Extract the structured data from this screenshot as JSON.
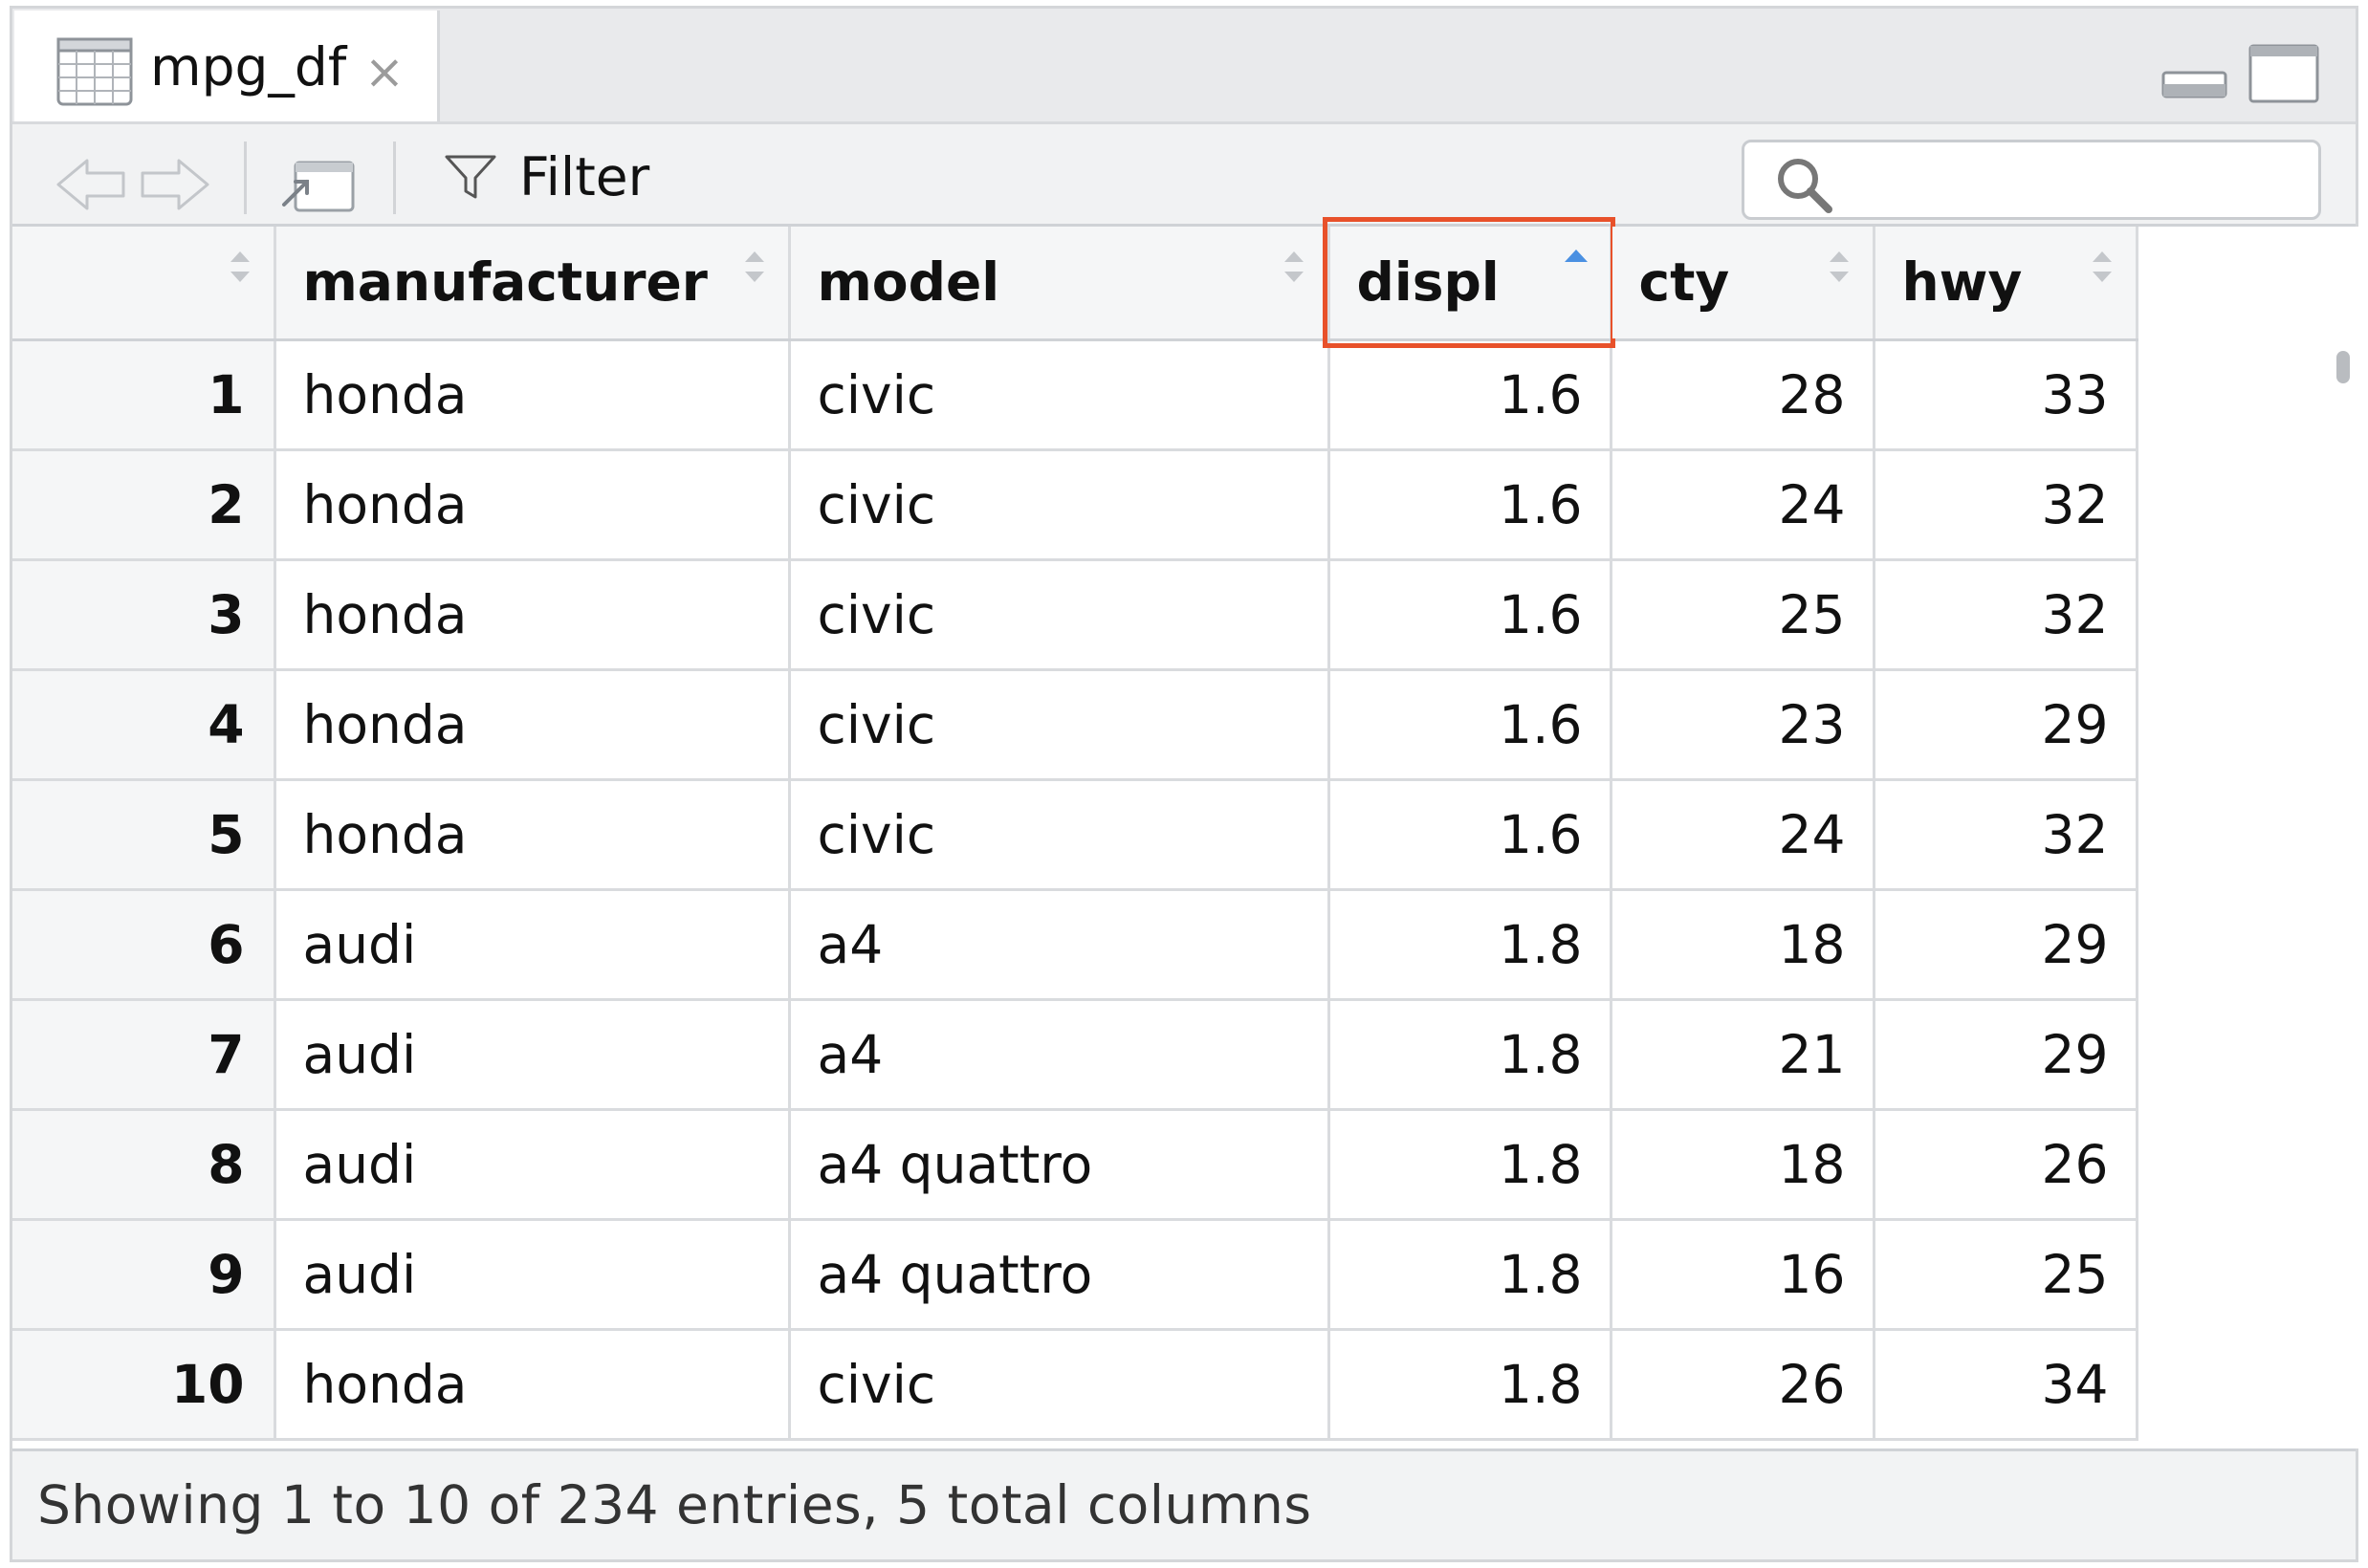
{
  "tab": {
    "title": "mpg_df",
    "close": "×"
  },
  "toolbar": {
    "filter_label": "Filter",
    "search_placeholder": ""
  },
  "table": {
    "columns": [
      {
        "label": "",
        "sort": "none"
      },
      {
        "label": "manufacturer",
        "sort": "none"
      },
      {
        "label": "model",
        "sort": "none"
      },
      {
        "label": "displ",
        "sort": "ascending"
      },
      {
        "label": "cty",
        "sort": "none"
      },
      {
        "label": "hwy",
        "sort": "none"
      }
    ],
    "rows": [
      {
        "n": "1",
        "manufacturer": "honda",
        "model": "civic",
        "displ": "1.6",
        "cty": "28",
        "hwy": "33"
      },
      {
        "n": "2",
        "manufacturer": "honda",
        "model": "civic",
        "displ": "1.6",
        "cty": "24",
        "hwy": "32"
      },
      {
        "n": "3",
        "manufacturer": "honda",
        "model": "civic",
        "displ": "1.6",
        "cty": "25",
        "hwy": "32"
      },
      {
        "n": "4",
        "manufacturer": "honda",
        "model": "civic",
        "displ": "1.6",
        "cty": "23",
        "hwy": "29"
      },
      {
        "n": "5",
        "manufacturer": "honda",
        "model": "civic",
        "displ": "1.6",
        "cty": "24",
        "hwy": "32"
      },
      {
        "n": "6",
        "manufacturer": "audi",
        "model": "a4",
        "displ": "1.8",
        "cty": "18",
        "hwy": "29"
      },
      {
        "n": "7",
        "manufacturer": "audi",
        "model": "a4",
        "displ": "1.8",
        "cty": "21",
        "hwy": "29"
      },
      {
        "n": "8",
        "manufacturer": "audi",
        "model": "a4 quattro",
        "displ": "1.8",
        "cty": "18",
        "hwy": "26"
      },
      {
        "n": "9",
        "manufacturer": "audi",
        "model": "a4 quattro",
        "displ": "1.8",
        "cty": "16",
        "hwy": "25"
      },
      {
        "n": "10",
        "manufacturer": "honda",
        "model": "civic",
        "displ": "1.8",
        "cty": "26",
        "hwy": "34"
      }
    ]
  },
  "footer": {
    "status": "Showing 1 to 10 of 234 entries, 5 total columns"
  },
  "colors": {
    "highlight": "#e8512a",
    "sort_active": "#4a90e2",
    "sort_inactive": "#c4c7cb"
  },
  "icons": [
    "table-icon",
    "close-icon",
    "minimize-icon",
    "maximize-icon",
    "back-arrow-icon",
    "forward-arrow-icon",
    "popout-icon",
    "filter-icon",
    "search-icon",
    "sort-icon"
  ]
}
